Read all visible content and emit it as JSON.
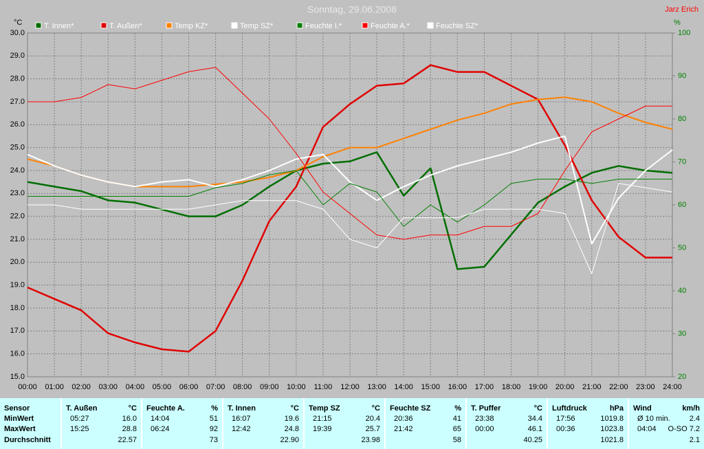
{
  "chart_data": {
    "type": "line",
    "title": "Sonntag, 29.06.2008",
    "author": "Jarz Erich",
    "ylabel": "°C",
    "y2label": "%",
    "x": [
      0,
      1,
      2,
      3,
      4,
      5,
      6,
      7,
      8,
      9,
      10,
      11,
      12,
      13,
      14,
      15,
      16,
      17,
      18,
      19,
      20,
      21,
      22,
      23,
      24
    ],
    "xlim": [
      0,
      24
    ],
    "xticks": [
      {
        "value": 0,
        "label": "00:00"
      },
      {
        "value": 1,
        "label": "01:00"
      },
      {
        "value": 2,
        "label": "02:00"
      },
      {
        "value": 3,
        "label": "03:00"
      },
      {
        "value": 4,
        "label": "04:00"
      },
      {
        "value": 5,
        "label": "05:00"
      },
      {
        "value": 6,
        "label": "06:00"
      },
      {
        "value": 7,
        "label": "07:00"
      },
      {
        "value": 8,
        "label": "08:00"
      },
      {
        "value": 9,
        "label": "09:00"
      },
      {
        "value": 10,
        "label": "10:00"
      },
      {
        "value": 11,
        "label": "11:00"
      },
      {
        "value": 12,
        "label": "12:00"
      },
      {
        "value": 13,
        "label": "13:00"
      },
      {
        "value": 14,
        "label": "14:00"
      },
      {
        "value": 15,
        "label": "15:00"
      },
      {
        "value": 16,
        "label": "16:00"
      },
      {
        "value": 17,
        "label": "17:00"
      },
      {
        "value": 18,
        "label": "18:00"
      },
      {
        "value": 19,
        "label": "19:00"
      },
      {
        "value": 20,
        "label": "20:00"
      },
      {
        "value": 21,
        "label": "21:00"
      },
      {
        "value": 22,
        "label": "22:00"
      },
      {
        "value": 23,
        "label": "23:00"
      },
      {
        "value": 24,
        "label": "24:00"
      }
    ],
    "ylim": [
      15,
      30
    ],
    "yticks": [
      {
        "value": 15,
        "label": "15.0"
      },
      {
        "value": 16,
        "label": "16.0"
      },
      {
        "value": 17,
        "label": "17.0"
      },
      {
        "value": 18,
        "label": "18.0"
      },
      {
        "value": 19,
        "label": "19.0"
      },
      {
        "value": 20,
        "label": "20.0"
      },
      {
        "value": 21,
        "label": "21.0"
      },
      {
        "value": 22,
        "label": "22.0"
      },
      {
        "value": 23,
        "label": "23.0"
      },
      {
        "value": 24,
        "label": "24.0"
      },
      {
        "value": 25,
        "label": "25.0"
      },
      {
        "value": 26,
        "label": "26.0"
      },
      {
        "value": 27,
        "label": "27.0"
      },
      {
        "value": 28,
        "label": "28.0"
      },
      {
        "value": 29,
        "label": "29.0"
      },
      {
        "value": 30,
        "label": "30.0"
      }
    ],
    "y2lim": [
      20,
      100
    ],
    "y2ticks": [
      20,
      30,
      40,
      50,
      60,
      70,
      80,
      90,
      100
    ],
    "grid": true,
    "series": [
      {
        "name": "T. Innen*",
        "color": "#006e00",
        "line_width": 2.5,
        "values": [
          23.5,
          23.3,
          23.1,
          22.7,
          22.6,
          22.3,
          22.0,
          22.0,
          22.5,
          23.3,
          24.0,
          24.3,
          24.4,
          24.8,
          22.9,
          24.1,
          19.7,
          19.8,
          21.2,
          22.6,
          23.3,
          23.9,
          24.2,
          24.0,
          23.9
        ]
      },
      {
        "name": "T. Außen*",
        "color": "#e00000",
        "line_width": 2.5,
        "values": [
          18.9,
          18.4,
          17.9,
          16.9,
          16.5,
          16.2,
          16.1,
          17.0,
          19.2,
          21.8,
          23.3,
          25.9,
          26.9,
          27.7,
          27.8,
          28.6,
          28.3,
          28.3,
          27.7,
          27.1,
          25.1,
          22.7,
          21.1,
          20.2,
          20.2
        ]
      },
      {
        "name": "Temp KZ*",
        "color": "#ff8000",
        "line_width": 2,
        "values": [
          24.5,
          24.2,
          23.8,
          23.5,
          23.3,
          23.3,
          23.3,
          23.4,
          23.5,
          23.7,
          24.0,
          24.6,
          25.0,
          25.0,
          25.4,
          25.8,
          26.2,
          26.5,
          26.9,
          27.1,
          27.2,
          27.0,
          26.5,
          26.1,
          25.8
        ]
      },
      {
        "name": "Temp SZ*",
        "color": "#ffffff",
        "line_width": 2,
        "values": [
          24.7,
          24.2,
          23.8,
          23.5,
          23.3,
          23.5,
          23.6,
          23.3,
          23.6,
          24.0,
          24.5,
          24.7,
          23.5,
          22.7,
          23.3,
          23.8,
          24.2,
          24.5,
          24.8,
          25.2,
          25.5,
          20.8,
          22.8,
          24.0,
          24.9
        ]
      },
      {
        "name": "Feuchte I.*",
        "color": "#008000",
        "line_width": 1,
        "axis": "y2",
        "values": [
          62,
          62,
          62,
          62,
          62,
          62,
          62,
          64,
          65,
          67,
          68,
          60,
          65,
          63,
          55,
          60,
          56,
          60,
          65,
          66,
          66,
          65,
          66,
          66,
          66
        ]
      },
      {
        "name": "Feuchte A.*",
        "color": "#ff0000",
        "line_width": 1,
        "axis": "y2",
        "values": [
          84,
          84,
          85,
          88,
          87,
          89,
          91,
          92,
          86,
          80,
          72,
          63,
          58,
          53,
          52,
          53,
          53,
          55,
          55,
          58,
          68,
          77,
          80,
          83,
          83
        ]
      },
      {
        "name": "Feuchte SZ*",
        "color": "#ffffff",
        "line_width": 1,
        "axis": "y2",
        "values": [
          60,
          60,
          59,
          59,
          59,
          59,
          59,
          60,
          61,
          61,
          61,
          59,
          52,
          50,
          57,
          57,
          57,
          59,
          59,
          59,
          58,
          44,
          65,
          64,
          63
        ]
      }
    ]
  },
  "table": {
    "header": [
      {
        "name": "Sensor"
      },
      {
        "name": "T. Außen",
        "unit": "°C"
      },
      {
        "name": "Feuchte A.",
        "unit": "%"
      },
      {
        "name": "T. Innen",
        "unit": "°C"
      },
      {
        "name": "Temp SZ",
        "unit": "°C"
      },
      {
        "name": "Feuchte SZ",
        "unit": "%"
      },
      {
        "name": "T. Puffer",
        "unit": "°C"
      },
      {
        "name": "Luftdruck",
        "unit": "hPa"
      },
      {
        "name": "Wind",
        "unit": "km/h"
      }
    ],
    "rows": [
      {
        "label": "MinWert",
        "cells": [
          [
            "05:27",
            "16.0"
          ],
          [
            "14:04",
            "51"
          ],
          [
            "16:07",
            "19.6"
          ],
          [
            "21:15",
            "20.4"
          ],
          [
            "20:36",
            "41"
          ],
          [
            "23:38",
            "34.4"
          ],
          [
            "17:56",
            "1019.8"
          ],
          [
            "Ø 10 min.",
            "2.4"
          ]
        ]
      },
      {
        "label": "MaxWert",
        "cells": [
          [
            "15:25",
            "28.8"
          ],
          [
            "06:24",
            "92"
          ],
          [
            "12:42",
            "24.8"
          ],
          [
            "19:39",
            "25.7"
          ],
          [
            "21:42",
            "65"
          ],
          [
            "00:00",
            "46.1"
          ],
          [
            "00:36",
            "1023.8"
          ],
          [
            "04:04",
            "O-SO 7.2"
          ]
        ]
      },
      {
        "label": "Durchschnitt",
        "cells": [
          [
            "22.57"
          ],
          [
            "73"
          ],
          [
            "22.90"
          ],
          [
            "23.98"
          ],
          [
            "58"
          ],
          [
            "40.25"
          ],
          [
            "1021.8"
          ],
          [
            "2.1"
          ]
        ]
      }
    ]
  }
}
